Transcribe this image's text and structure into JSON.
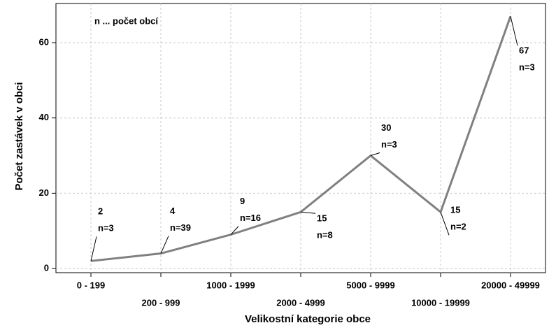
{
  "chart_data": {
    "type": "line",
    "annotation": "n ... počet obcí",
    "xlabel": "Velikostní kategorie obce",
    "ylabel": "Počet zastávek v obci",
    "categories": [
      "0 - 199",
      "200 - 999",
      "1000 - 1999",
      "2000 - 4999",
      "5000 - 9999",
      "10000 - 19999",
      "20000 - 49999"
    ],
    "series": [
      {
        "name": "Počet zastávek",
        "color": "#808080",
        "values": [
          2,
          4,
          9,
          15,
          30,
          15,
          67
        ],
        "n_labels": [
          "n=3",
          "n=39",
          "n=16",
          "n=8",
          "n=3",
          "n=2",
          "n=3"
        ]
      }
    ],
    "ylim": [
      -1.1,
      70.4
    ],
    "yticks": [
      0,
      20,
      40,
      60
    ],
    "grid": true
  }
}
